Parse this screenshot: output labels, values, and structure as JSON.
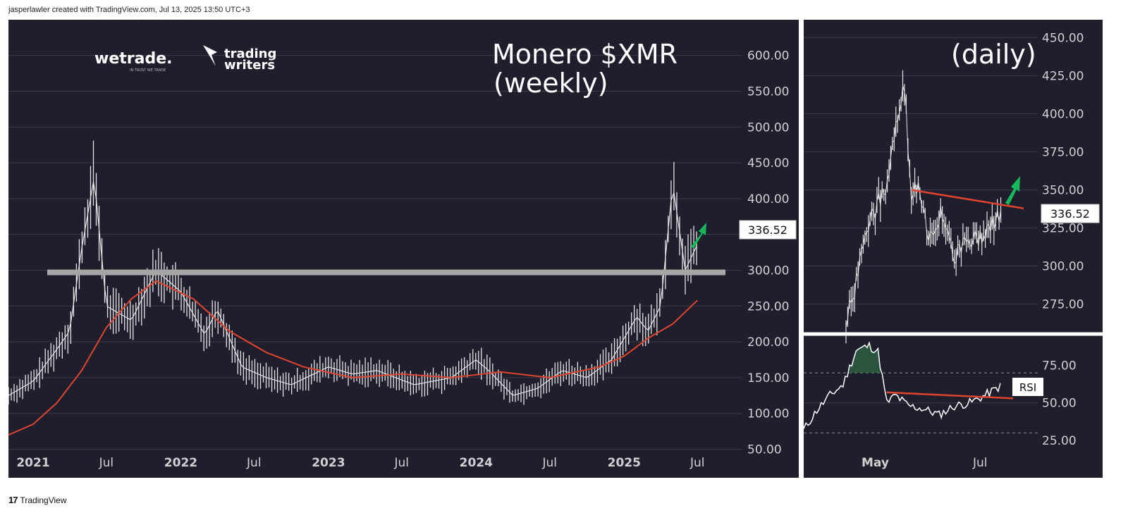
{
  "header": {
    "text": "jasperlawler created with TradingView.com, Jul 13, 2025 13:50 UTC+3"
  },
  "footer": {
    "brand": "TradingView",
    "logo_glyph": "17"
  },
  "logos": {
    "wetrade": "wetrade.",
    "wetrade_tag": "IN TRUST WE TRADE",
    "tw_line1": "trading",
    "tw_line2": "writers"
  },
  "colors": {
    "background": "#1e1e2d",
    "price": "#e6e6e6",
    "ma": "#e0442e",
    "resistance": "#a6a6a6",
    "trendline": "#e0442e",
    "arrow": "#16b85a",
    "grid": "#3a3a4a",
    "rsi_fill": "#2e6b45"
  },
  "chart_data": [
    {
      "type": "line",
      "title": "Monero $XMR",
      "subtitle": "(weekly)",
      "y_ticks": [
        "600.00",
        "550.00",
        "500.00",
        "450.00",
        "400.00",
        "350.00",
        "300.00",
        "250.00",
        "200.00",
        "150.00",
        "100.00",
        "50.00"
      ],
      "x_ticks": [
        "2021",
        "Jul",
        "2022",
        "Jul",
        "2023",
        "Jul",
        "2024",
        "Jul",
        "2025",
        "Jul"
      ],
      "ylim": [
        20,
        640
      ],
      "last_price_label": "336.52",
      "resistance_level": 297,
      "series": [
        {
          "x": [
            "2020-11",
            "2021-01",
            "2021-03",
            "2021-04",
            "2021-05",
            "2021-06",
            "2021-07",
            "2021-09",
            "2021-11",
            "2022-01",
            "2022-03",
            "2022-04",
            "2022-06",
            "2022-08",
            "2022-10",
            "2023-01",
            "2023-03",
            "2023-05",
            "2023-08",
            "2023-11",
            "2024-01",
            "2024-02",
            "2024-04",
            "2024-06",
            "2024-08",
            "2024-10",
            "2024-12",
            "2025-02",
            "2025-03",
            "2025-04",
            "2025-05",
            "2025-06",
            "2025-07"
          ],
          "values": [
            125,
            145,
            190,
            215,
            330,
            430,
            250,
            230,
            300,
            270,
            210,
            245,
            165,
            150,
            140,
            165,
            155,
            160,
            140,
            150,
            175,
            160,
            125,
            135,
            160,
            150,
            175,
            235,
            215,
            250,
            420,
            300,
            336
          ]
        },
        {
          "x": [
            "2020-11",
            "2021-01",
            "2021-03",
            "2021-05",
            "2021-07",
            "2021-09",
            "2021-11",
            "2022-02",
            "2022-05",
            "2022-08",
            "2022-11",
            "2023-03",
            "2023-07",
            "2023-11",
            "2024-03",
            "2024-07",
            "2024-11",
            "2025-01",
            "2025-03",
            "2025-05",
            "2025-07"
          ],
          "values": [
            70,
            85,
            115,
            160,
            220,
            260,
            285,
            260,
            215,
            185,
            165,
            150,
            155,
            150,
            158,
            150,
            165,
            180,
            205,
            225,
            258
          ]
        }
      ]
    },
    {
      "type": "line",
      "title": "(daily)",
      "y_ticks": [
        "450.00",
        "425.00",
        "400.00",
        "375.00",
        "350.00",
        "325.00",
        "300.00",
        "275.00"
      ],
      "x_ticks": [
        "May",
        "Jul"
      ],
      "ylim": [
        260,
        458
      ],
      "last_price_label": "336.52",
      "series": [
        {
          "x": [
            "2025-04-14",
            "2025-04-20",
            "2025-04-26",
            "2025-05-02",
            "2025-05-08",
            "2025-05-14",
            "2025-05-18",
            "2025-05-22",
            "2025-05-26",
            "2025-06-01",
            "2025-06-08",
            "2025-06-15",
            "2025-06-22",
            "2025-06-29",
            "2025-07-06",
            "2025-07-13"
          ],
          "values": [
            262,
            290,
            325,
            340,
            350,
            400,
            418,
            340,
            358,
            320,
            335,
            305,
            318,
            318,
            325,
            336
          ]
        }
      ],
      "trendline": {
        "x": [
          "2025-05-22",
          "2025-07-14"
        ],
        "values": [
          350,
          336
        ]
      }
    },
    {
      "type": "line",
      "title": "RSI",
      "y_ticks": [
        "75.00",
        "50.00",
        "25.00"
      ],
      "ylim": [
        18,
        93
      ],
      "overbought": 70,
      "oversold": 30,
      "series": [
        {
          "x": [
            "2025-04-14",
            "2025-04-20",
            "2025-04-26",
            "2025-05-02",
            "2025-05-08",
            "2025-05-14",
            "2025-05-18",
            "2025-05-22",
            "2025-05-26",
            "2025-06-01",
            "2025-06-08",
            "2025-06-15",
            "2025-06-22",
            "2025-06-29",
            "2025-07-06",
            "2025-07-13"
          ],
          "values": [
            32,
            45,
            55,
            62,
            85,
            88,
            84,
            50,
            55,
            48,
            46,
            42,
            48,
            50,
            55,
            61
          ]
        }
      ],
      "trendline": {
        "x": [
          "2025-05-22",
          "2025-07-14"
        ],
        "values": [
          57,
          53
        ]
      }
    }
  ]
}
